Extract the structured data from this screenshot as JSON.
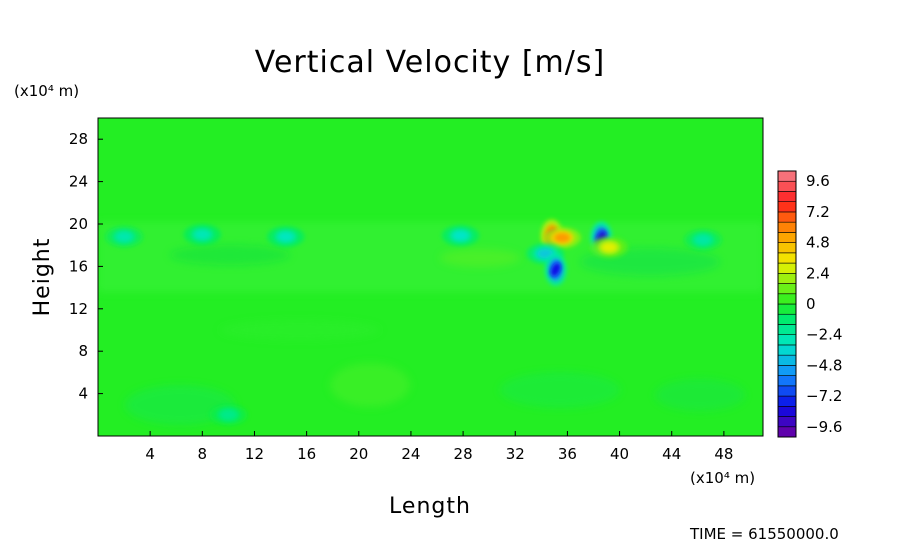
{
  "chart_data": {
    "type": "heatmap",
    "title": "Vertical Velocity [m/s]",
    "xlabel": "Length",
    "ylabel": "Height",
    "x_unit_label": "(x10⁴ m)",
    "y_unit_label": "(x10⁴ m)",
    "xlim": [
      0,
      51
    ],
    "ylim": [
      0,
      30
    ],
    "x_ticks": [
      "4",
      "8",
      "12",
      "16",
      "20",
      "24",
      "28",
      "32",
      "36",
      "40",
      "44",
      "48"
    ],
    "y_ticks": [
      "4",
      "8",
      "12",
      "16",
      "20",
      "24",
      "28"
    ],
    "colorbar": {
      "min": -10.4,
      "max": 10.4,
      "step": 0.8,
      "tick_labels": [
        "9.6",
        "7.2",
        "4.8",
        "2.4",
        "0",
        "−2.4",
        "−4.8",
        "−7.2",
        "−9.6"
      ],
      "tick_values": [
        9.6,
        7.2,
        4.8,
        2.4,
        0,
        -2.4,
        -4.8,
        -7.2,
        -9.6
      ]
    },
    "background_value": 0,
    "features": [
      {
        "x": 34.8,
        "y": 18.9,
        "value": 7.5
      },
      {
        "x": 35.6,
        "y": 18.7,
        "value": 5.5
      },
      {
        "x": 34.3,
        "y": 17.2,
        "value": -4.0
      },
      {
        "x": 35.1,
        "y": 15.7,
        "value": -8.0
      },
      {
        "x": 38.6,
        "y": 18.7,
        "value": -8.5
      },
      {
        "x": 39.2,
        "y": 17.8,
        "value": 3.0
      },
      {
        "x": 27.8,
        "y": 18.9,
        "value": -3.2
      },
      {
        "x": 8.0,
        "y": 19.0,
        "value": -2.8
      },
      {
        "x": 14.4,
        "y": 18.8,
        "value": -3.0
      },
      {
        "x": 2.0,
        "y": 18.8,
        "value": -2.6
      },
      {
        "x": 46.4,
        "y": 18.5,
        "value": -2.4
      },
      {
        "x": 10.0,
        "y": 2.0,
        "value": -1.8
      }
    ]
  },
  "footer": {
    "time_text": "TIME = 61550000.0"
  }
}
